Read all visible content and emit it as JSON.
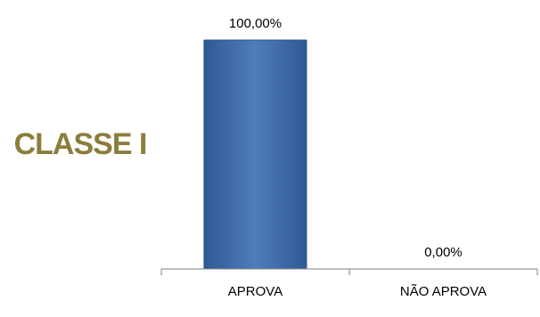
{
  "side_label": "CLASSE I",
  "colors": {
    "side_label": "#8B7D3A",
    "bar_top": "#4F7DBA",
    "bar_bottom": "#2E5A94",
    "bar_stroke": "#2A4F80",
    "axis": "#808080"
  },
  "chart_data": {
    "type": "bar",
    "categories": [
      "APROVA",
      "NÃO APROVA"
    ],
    "values": [
      100,
      0
    ],
    "data_labels": [
      "100,00%",
      "0,00%"
    ],
    "ylim": [
      0,
      100
    ],
    "title": "",
    "xlabel": "",
    "ylabel": "",
    "grid": false,
    "legend": "none"
  }
}
